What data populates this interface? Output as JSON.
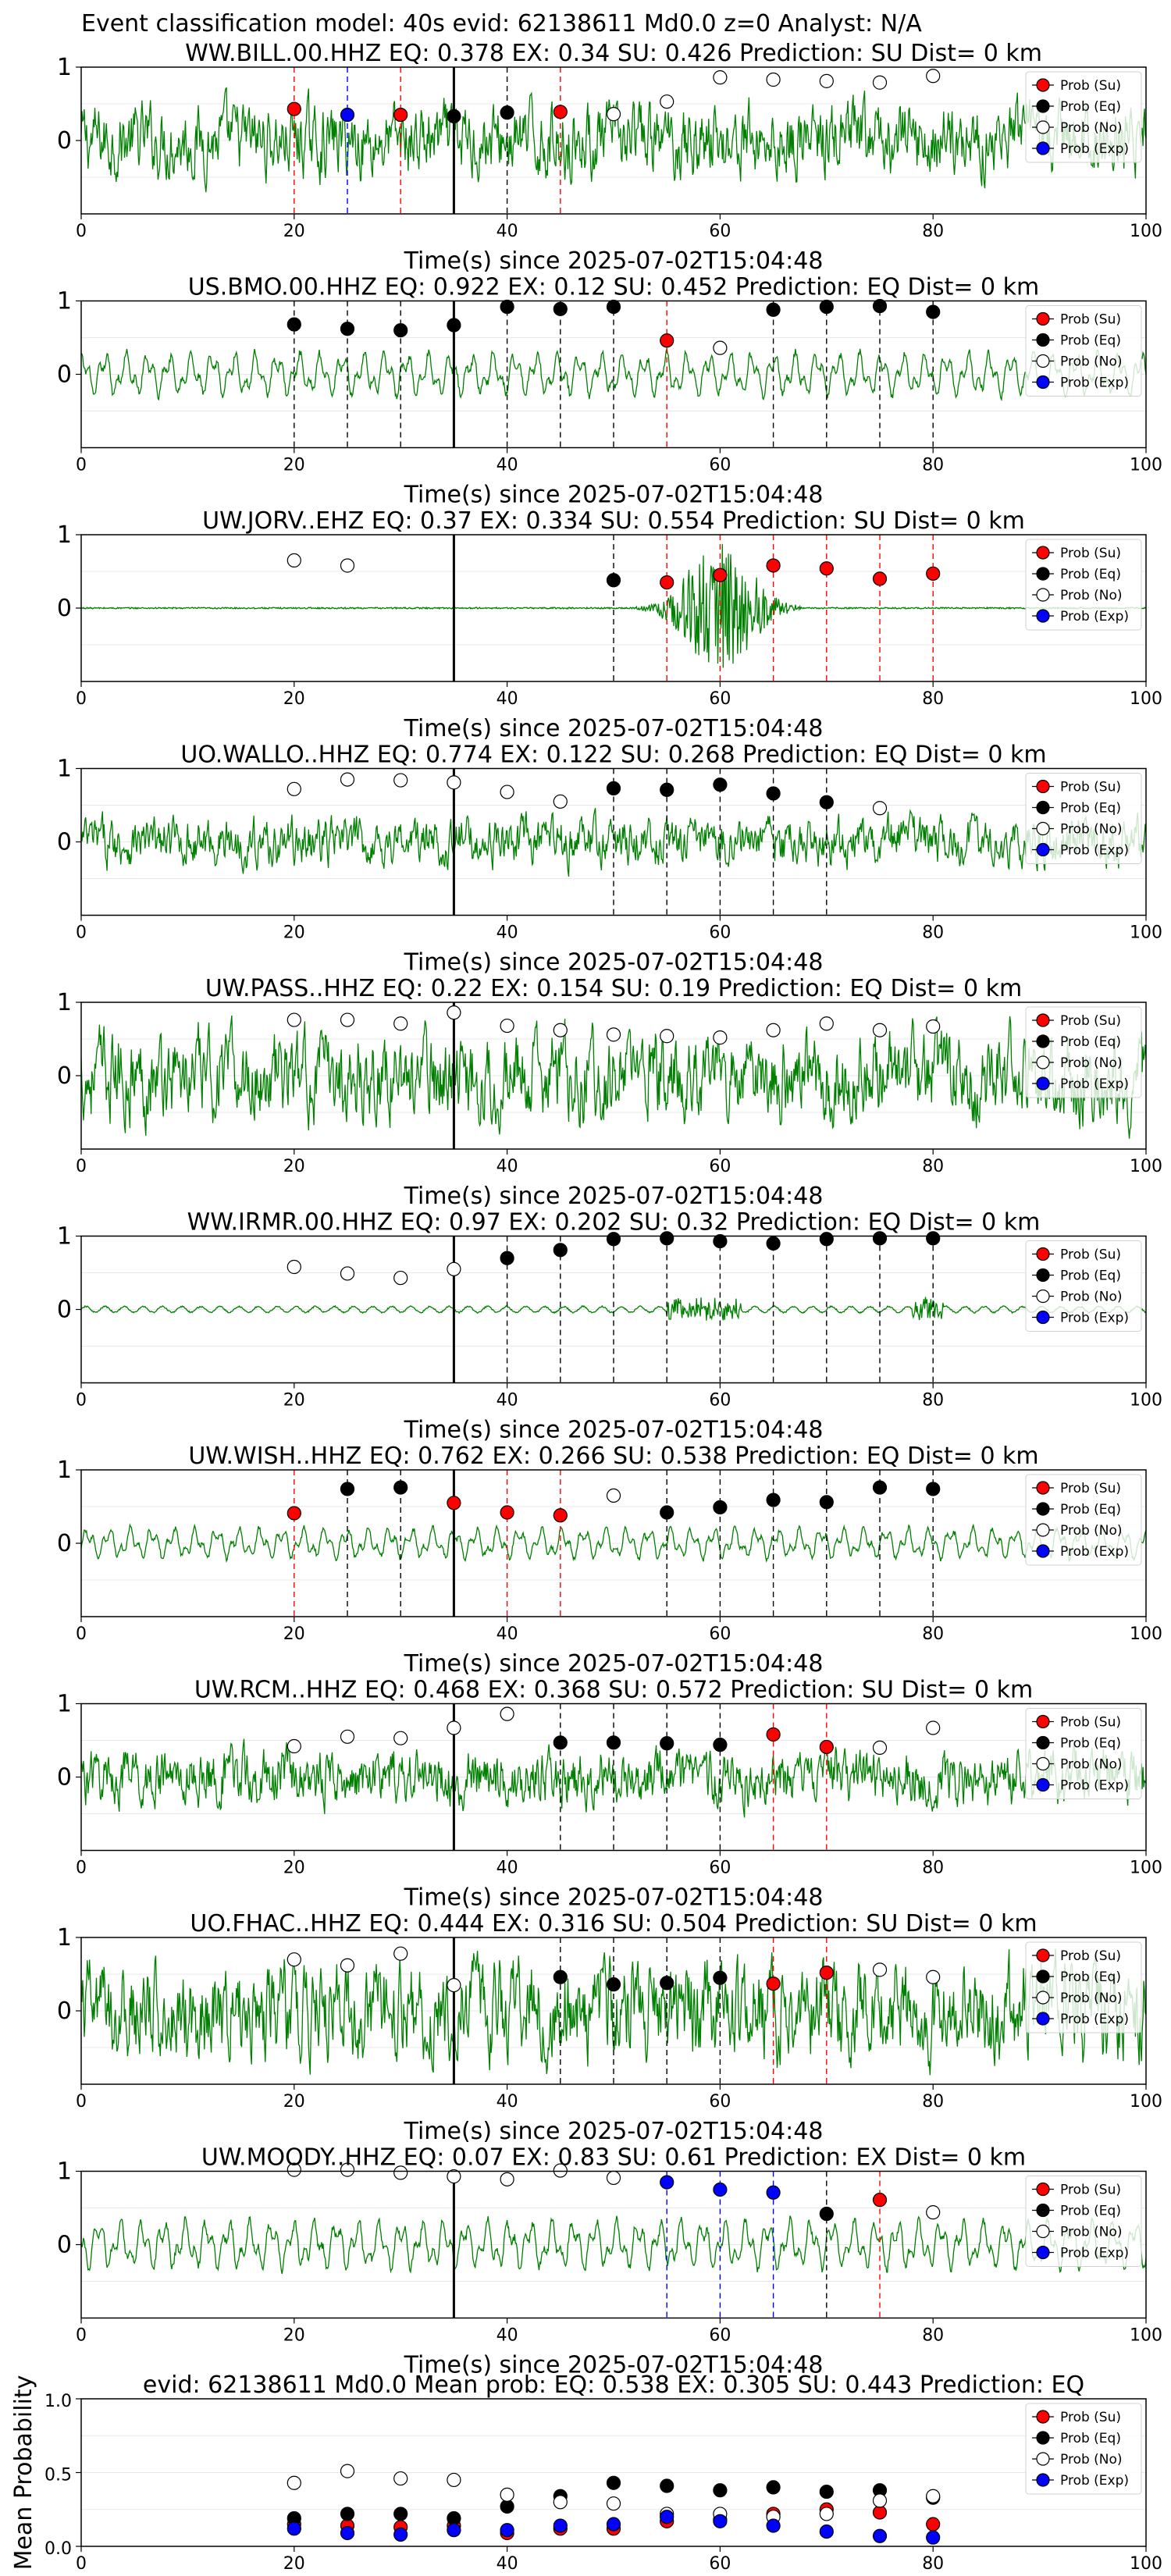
{
  "suptitle": "Event classification model: 40s evid: 62138611 Md0.0 z=0 Analyst: N/A",
  "legend_labels": [
    "Prob (Su)",
    "Prob (Eq)",
    "Prob (No)",
    "Prob (Exp)"
  ],
  "colors": {
    "waveform": "#008000",
    "su": "#ff0000",
    "eq": "#000000",
    "no": "#ffffff",
    "exp": "#0000ff",
    "su_line": "#ff0000",
    "eq_line": "#000000",
    "exp_line": "#0000ff",
    "origin_line": "#000000"
  },
  "chart_data": [
    {
      "type": "scatter",
      "station": "WW.BILL.00.HHZ",
      "title": "WW.BILL.00.HHZ   EQ: 0.378  EX: 0.34  SU: 0.426   Prediction: SU    Dist= 0 km",
      "xlabel": "Time(s) since 2025-07-02T15:04:48",
      "xlim": [
        0,
        100
      ],
      "xticks": [
        0,
        20,
        40,
        60,
        80,
        100
      ],
      "ylim": [
        -1,
        1
      ],
      "yticks": [
        0,
        1
      ],
      "origin_time": 35,
      "waveform_amplitude": 0.45,
      "waveform_character": "noisy",
      "series": [
        {
          "name": "Prob (Su)",
          "x": [
            20,
            30,
            45
          ],
          "y": [
            0.43,
            0.35,
            0.39
          ]
        },
        {
          "name": "Prob (Eq)",
          "x": [
            35,
            40
          ],
          "y": [
            0.33,
            0.38
          ]
        },
        {
          "name": "Prob (No)",
          "x": [
            50,
            55,
            60,
            65,
            70,
            75,
            80
          ],
          "y": [
            0.36,
            0.53,
            0.86,
            0.83,
            0.81,
            0.79,
            0.88
          ]
        },
        {
          "name": "Prob (Exp)",
          "x": [
            25
          ],
          "y": [
            0.35
          ]
        }
      ]
    },
    {
      "type": "scatter",
      "station": "US.BMO.00.HHZ",
      "title": "US.BMO.00.HHZ   EQ: 0.922  EX: 0.12  SU: 0.452   Prediction: EQ    Dist= 0 km",
      "xlabel": "Time(s) since 2025-07-02T15:04:48",
      "xlim": [
        0,
        100
      ],
      "xticks": [
        0,
        20,
        40,
        60,
        80,
        100
      ],
      "ylim": [
        -1,
        1
      ],
      "yticks": [
        0,
        1
      ],
      "origin_time": 35,
      "waveform_amplitude": 0.35,
      "waveform_character": "smooth",
      "series": [
        {
          "name": "Prob (Su)",
          "x": [
            55
          ],
          "y": [
            0.46
          ]
        },
        {
          "name": "Prob (Eq)",
          "x": [
            20,
            25,
            30,
            35,
            40,
            45,
            50,
            65,
            70,
            75,
            80
          ],
          "y": [
            0.68,
            0.62,
            0.6,
            0.67,
            0.92,
            0.89,
            0.92,
            0.88,
            0.92,
            0.93,
            0.85
          ]
        },
        {
          "name": "Prob (No)",
          "x": [
            60
          ],
          "y": [
            0.36
          ]
        },
        {
          "name": "Prob (Exp)",
          "x": [],
          "y": []
        }
      ]
    },
    {
      "type": "scatter",
      "station": "UW.JORV..EHZ",
      "title": "UW.JORV..EHZ   EQ: 0.37  EX: 0.334  SU: 0.554   Prediction: SU    Dist= 0 km",
      "xlabel": "Time(s) since 2025-07-02T15:04:48",
      "xlim": [
        0,
        100
      ],
      "xticks": [
        0,
        20,
        40,
        60,
        80,
        100
      ],
      "ylim": [
        -1,
        1
      ],
      "yticks": [
        0,
        1
      ],
      "origin_time": 35,
      "waveform_amplitude": 0.02,
      "waveform_character": "burst",
      "series": [
        {
          "name": "Prob (Su)",
          "x": [
            55,
            60,
            65,
            70,
            75,
            80
          ],
          "y": [
            0.35,
            0.45,
            0.58,
            0.54,
            0.4,
            0.47
          ]
        },
        {
          "name": "Prob (Eq)",
          "x": [
            50
          ],
          "y": [
            0.38
          ]
        },
        {
          "name": "Prob (No)",
          "x": [
            20,
            25
          ],
          "y": [
            0.65,
            0.58
          ]
        },
        {
          "name": "Prob (Exp)",
          "x": [],
          "y": []
        }
      ]
    },
    {
      "type": "scatter",
      "station": "UO.WALLO..HHZ",
      "title": "UO.WALLO..HHZ   EQ: 0.774  EX: 0.122  SU: 0.268   Prediction: EQ    Dist= 0 km",
      "xlabel": "Time(s) since 2025-07-02T15:04:48",
      "xlim": [
        0,
        100
      ],
      "xticks": [
        0,
        20,
        40,
        60,
        80,
        100
      ],
      "ylim": [
        -1,
        1
      ],
      "yticks": [
        0,
        1
      ],
      "origin_time": 35,
      "waveform_amplitude": 0.3,
      "waveform_character": "noisy",
      "series": [
        {
          "name": "Prob (Su)",
          "x": [],
          "y": []
        },
        {
          "name": "Prob (Eq)",
          "x": [
            50,
            55,
            60,
            65,
            70
          ],
          "y": [
            0.73,
            0.71,
            0.78,
            0.66,
            0.54
          ]
        },
        {
          "name": "Prob (No)",
          "x": [
            20,
            25,
            30,
            35,
            40,
            45,
            75
          ],
          "y": [
            0.72,
            0.85,
            0.84,
            0.81,
            0.68,
            0.55,
            0.46
          ]
        },
        {
          "name": "Prob (Exp)",
          "x": [],
          "y": []
        }
      ]
    },
    {
      "type": "scatter",
      "station": "UW.PASS..HHZ",
      "title": "UW.PASS..HHZ   EQ: 0.22  EX: 0.154  SU: 0.19   Prediction: EQ    Dist= 0 km",
      "xlabel": "Time(s) since 2025-07-02T15:04:48",
      "xlim": [
        0,
        100
      ],
      "xticks": [
        0,
        20,
        40,
        60,
        80,
        100
      ],
      "ylim": [
        -1,
        1
      ],
      "yticks": [
        0,
        1
      ],
      "origin_time": 35,
      "waveform_amplitude": 0.55,
      "waveform_character": "noisy",
      "series": [
        {
          "name": "Prob (Su)",
          "x": [],
          "y": []
        },
        {
          "name": "Prob (Eq)",
          "x": [],
          "y": []
        },
        {
          "name": "Prob (No)",
          "x": [
            20,
            25,
            30,
            35,
            40,
            45,
            50,
            55,
            60,
            65,
            70,
            75,
            80
          ],
          "y": [
            0.76,
            0.76,
            0.71,
            0.86,
            0.68,
            0.62,
            0.56,
            0.54,
            0.52,
            0.62,
            0.71,
            0.62,
            0.67
          ]
        },
        {
          "name": "Prob (Exp)",
          "x": [],
          "y": []
        }
      ]
    },
    {
      "type": "scatter",
      "station": "WW.IRMR.00.HHZ",
      "title": "WW.IRMR.00.HHZ   EQ: 0.97  EX: 0.202  SU: 0.32   Prediction: EQ    Dist= 0 km",
      "xlabel": "Time(s) since 2025-07-02T15:04:48",
      "xlim": [
        0,
        100
      ],
      "xticks": [
        0,
        20,
        40,
        60,
        80,
        100
      ],
      "ylim": [
        -1,
        1
      ],
      "yticks": [
        0,
        1
      ],
      "origin_time": 35,
      "waveform_amplitude": 0.08,
      "waveform_character": "quiet",
      "series": [
        {
          "name": "Prob (Su)",
          "x": [],
          "y": []
        },
        {
          "name": "Prob (Eq)",
          "x": [
            40,
            45,
            50,
            55,
            60,
            65,
            70,
            75,
            80
          ],
          "y": [
            0.7,
            0.81,
            0.96,
            0.97,
            0.93,
            0.9,
            0.96,
            0.97,
            0.97
          ]
        },
        {
          "name": "Prob (No)",
          "x": [
            20,
            25,
            30,
            35
          ],
          "y": [
            0.58,
            0.49,
            0.43,
            0.55
          ]
        },
        {
          "name": "Prob (Exp)",
          "x": [],
          "y": []
        }
      ]
    },
    {
      "type": "scatter",
      "station": "UW.WISH..HHZ",
      "title": "UW.WISH..HHZ   EQ: 0.762  EX: 0.266  SU: 0.538   Prediction: EQ    Dist= 0 km",
      "xlabel": "Time(s) since 2025-07-02T15:04:48",
      "xlim": [
        0,
        100
      ],
      "xticks": [
        0,
        20,
        40,
        60,
        80,
        100
      ],
      "ylim": [
        -1,
        1
      ],
      "yticks": [
        0,
        1
      ],
      "origin_time": 35,
      "waveform_amplitude": 0.25,
      "waveform_character": "smooth",
      "series": [
        {
          "name": "Prob (Su)",
          "x": [
            20,
            35,
            40,
            45
          ],
          "y": [
            0.41,
            0.55,
            0.42,
            0.38
          ]
        },
        {
          "name": "Prob (Eq)",
          "x": [
            25,
            30,
            55,
            60,
            65,
            70,
            75,
            80
          ],
          "y": [
            0.74,
            0.76,
            0.42,
            0.49,
            0.59,
            0.56,
            0.76,
            0.74
          ]
        },
        {
          "name": "Prob (No)",
          "x": [
            50
          ],
          "y": [
            0.65
          ]
        },
        {
          "name": "Prob (Exp)",
          "x": [],
          "y": []
        }
      ]
    },
    {
      "type": "scatter",
      "station": "UW.RCM..HHZ",
      "title": "UW.RCM..HHZ   EQ: 0.468  EX: 0.368  SU: 0.572   Prediction: SU    Dist= 0 km",
      "xlabel": "Time(s) since 2025-07-02T15:04:48",
      "xlim": [
        0,
        100
      ],
      "xticks": [
        0,
        20,
        40,
        60,
        80,
        100
      ],
      "ylim": [
        -1,
        1
      ],
      "yticks": [
        0,
        1
      ],
      "origin_time": 35,
      "waveform_amplitude": 0.35,
      "waveform_character": "noisy",
      "series": [
        {
          "name": "Prob (Su)",
          "x": [
            65,
            70
          ],
          "y": [
            0.58,
            0.41
          ]
        },
        {
          "name": "Prob (Eq)",
          "x": [
            45,
            50,
            55,
            60
          ],
          "y": [
            0.47,
            0.47,
            0.46,
            0.44
          ]
        },
        {
          "name": "Prob (No)",
          "x": [
            20,
            25,
            30,
            35,
            40,
            75,
            80
          ],
          "y": [
            0.42,
            0.55,
            0.53,
            0.67,
            0.86,
            0.4,
            0.67
          ]
        },
        {
          "name": "Prob (Exp)",
          "x": [],
          "y": []
        }
      ]
    },
    {
      "type": "scatter",
      "station": "UO.FHAC..HHZ",
      "title": "UO.FHAC..HHZ   EQ: 0.444  EX: 0.316  SU: 0.504   Prediction: SU    Dist= 0 km",
      "xlabel": "Time(s) since 2025-07-02T15:04:48",
      "xlim": [
        0,
        100
      ],
      "xticks": [
        0,
        20,
        40,
        60,
        80,
        100
      ],
      "ylim": [
        -1,
        1
      ],
      "yticks": [
        0,
        1
      ],
      "origin_time": 35,
      "waveform_amplitude": 0.6,
      "waveform_character": "noisy",
      "series": [
        {
          "name": "Prob (Su)",
          "x": [
            65,
            70
          ],
          "y": [
            0.37,
            0.52
          ]
        },
        {
          "name": "Prob (Eq)",
          "x": [
            45,
            50,
            55,
            60
          ],
          "y": [
            0.46,
            0.36,
            0.38,
            0.45
          ]
        },
        {
          "name": "Prob (No)",
          "x": [
            20,
            25,
            30,
            35,
            75,
            80
          ],
          "y": [
            0.7,
            0.62,
            0.78,
            0.35,
            0.56,
            0.46
          ]
        },
        {
          "name": "Prob (Exp)",
          "x": [],
          "y": []
        }
      ]
    },
    {
      "type": "scatter",
      "station": "UW.MOODY..HHZ",
      "title": "UW.MOODY..HHZ   EQ: 0.07  EX: 0.83  SU: 0.61   Prediction: EX    Dist= 0 km",
      "xlabel": "Time(s) since 2025-07-02T15:04:48",
      "xlim": [
        0,
        100
      ],
      "xticks": [
        0,
        20,
        40,
        60,
        80,
        100
      ],
      "ylim": [
        -1,
        1
      ],
      "yticks": [
        0,
        1
      ],
      "origin_time": 35,
      "waveform_amplitude": 0.4,
      "waveform_character": "smooth",
      "series": [
        {
          "name": "Prob (Su)",
          "x": [
            75
          ],
          "y": [
            0.61
          ]
        },
        {
          "name": "Prob (Eq)",
          "x": [
            70
          ],
          "y": [
            0.42
          ]
        },
        {
          "name": "Prob (No)",
          "x": [
            20,
            25,
            30,
            35,
            40,
            45,
            50,
            80
          ],
          "y": [
            1.02,
            1.02,
            0.98,
            0.93,
            0.89,
            1.01,
            0.91,
            0.44
          ]
        },
        {
          "name": "Prob (Exp)",
          "x": [
            55,
            60,
            65
          ],
          "y": [
            0.85,
            0.75,
            0.71
          ]
        }
      ]
    },
    {
      "type": "scatter",
      "title": "evid: 62138611  Md0.0   Mean prob:   EQ: 0.538  EX: 0.305  SU: 0.443   Prediction: EQ",
      "ylabel": "Mean Probability",
      "xlim": [
        0,
        100
      ],
      "xticks": [
        0,
        20,
        40,
        60,
        80,
        100
      ],
      "ylim": [
        0,
        1
      ],
      "yticks": [
        "0.0",
        "0.5",
        "1.0"
      ],
      "series": [
        {
          "name": "Prob (Su)",
          "x": [
            20,
            25,
            30,
            35,
            40,
            45,
            50,
            55,
            60,
            65,
            70,
            75,
            80
          ],
          "y": [
            0.15,
            0.14,
            0.13,
            0.14,
            0.09,
            0.12,
            0.12,
            0.17,
            0.18,
            0.22,
            0.25,
            0.23,
            0.15
          ]
        },
        {
          "name": "Prob (Eq)",
          "x": [
            20,
            25,
            30,
            35,
            40,
            45,
            50,
            55,
            60,
            65,
            70,
            75,
            80
          ],
          "y": [
            0.19,
            0.22,
            0.22,
            0.19,
            0.27,
            0.34,
            0.43,
            0.41,
            0.38,
            0.4,
            0.37,
            0.38,
            0.33
          ]
        },
        {
          "name": "Prob (No)",
          "x": [
            20,
            25,
            30,
            35,
            40,
            45,
            50,
            55,
            60,
            65,
            70,
            75,
            80
          ],
          "y": [
            0.43,
            0.51,
            0.46,
            0.45,
            0.35,
            0.3,
            0.29,
            0.22,
            0.22,
            0.2,
            0.22,
            0.31,
            0.34
          ]
        },
        {
          "name": "Prob (Exp)",
          "x": [
            20,
            25,
            30,
            35,
            40,
            45,
            50,
            55,
            60,
            65,
            70,
            75,
            80
          ],
          "y": [
            0.12,
            0.09,
            0.08,
            0.11,
            0.11,
            0.14,
            0.15,
            0.2,
            0.17,
            0.14,
            0.1,
            0.07,
            0.06
          ]
        }
      ]
    }
  ]
}
